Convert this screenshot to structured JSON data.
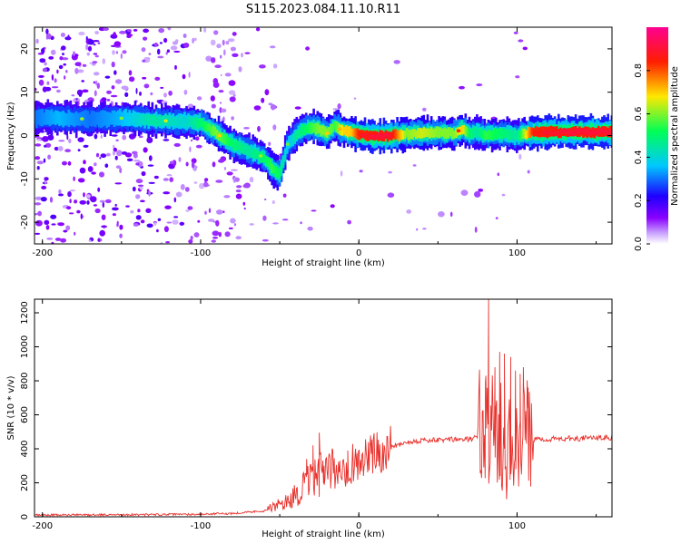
{
  "title": "S115.2023.084.11.10.R11",
  "colors": {
    "trace": "#e8312c",
    "frame": "#000000",
    "colorbar": [
      "#ffffff",
      "#8a00ff",
      "#1e00ff",
      "#00c8ff",
      "#00ff55",
      "#ffe800",
      "#ff1e00",
      "#ff0090"
    ]
  },
  "chart_data": [
    {
      "type": "heatmap",
      "title": "S115.2023.084.11.10.R11",
      "xlabel": "Height of straight line (km)",
      "ylabel": "Frequency (Hz)",
      "xlim": [
        -205,
        160
      ],
      "ylim": [
        -25,
        25
      ],
      "x_ticks": [
        -200,
        -100,
        0,
        100
      ],
      "y_ticks": [
        -20,
        -10,
        0,
        10,
        20
      ],
      "colorbar": {
        "label": "Normalized spectral amplitude",
        "range": [
          0,
          1
        ],
        "ticks": [
          "0.0",
          "0.2",
          "0.4",
          "0.6",
          "0.8"
        ],
        "colormap": "white-purple-blue-cyan-green-yellow-red-magenta"
      },
      "ridge": {
        "x": [
          -205,
          -190,
          -170,
          -150,
          -130,
          -110,
          -100,
          -90,
          -80,
          -70,
          -60,
          -55,
          -50,
          -45,
          -40,
          -35,
          -30,
          -25,
          -20,
          -15,
          -10,
          -5,
          0,
          10,
          20,
          30,
          40,
          50,
          60,
          65,
          70,
          75,
          80,
          90,
          100,
          110,
          130,
          160
        ],
        "y": [
          4,
          4,
          3.8,
          4,
          3.5,
          3.2,
          3,
          0.5,
          -2,
          -3.5,
          -5,
          -7.5,
          -9,
          -2,
          0,
          1.5,
          2,
          1.5,
          0.5,
          2.2,
          1,
          0.8,
          0.3,
          -0.2,
          0,
          0.4,
          0.4,
          0.6,
          0.5,
          1.5,
          0.5,
          0.8,
          0.2,
          0.4,
          0,
          0.7,
          0.8,
          0.8
        ],
        "peak_amplitude": [
          0.3,
          0.35,
          0.3,
          0.35,
          0.45,
          0.4,
          0.5,
          0.6,
          0.5,
          0.45,
          0.5,
          0.55,
          0.5,
          0.35,
          0.45,
          0.5,
          0.55,
          0.6,
          0.6,
          0.55,
          0.7,
          0.7,
          0.85,
          0.9,
          0.9,
          0.6,
          0.65,
          0.6,
          0.6,
          0.7,
          0.5,
          0.45,
          0.55,
          0.5,
          0.45,
          0.85,
          0.9,
          0.9
        ]
      }
    },
    {
      "type": "line",
      "xlabel": "Height of straight line (km)",
      "ylabel": "SNR (10 * v/v)",
      "xlim": [
        -205,
        160
      ],
      "ylim": [
        0,
        1280
      ],
      "x_ticks": [
        -200,
        -100,
        0,
        100
      ],
      "y_ticks": [
        0,
        200,
        400,
        600,
        800,
        1000,
        1200
      ],
      "series": [
        {
          "envelope_x": [
            -205,
            -150,
            -100,
            -80,
            -60,
            -45,
            -35,
            -28,
            -20,
            -10,
            0,
            10,
            20,
            30,
            40,
            50,
            60,
            70,
            75,
            80,
            85,
            90,
            100,
            108,
            110,
            130,
            160
          ],
          "envelope_y": [
            10,
            12,
            15,
            20,
            35,
            90,
            170,
            230,
            260,
            300,
            330,
            370,
            410,
            440,
            450,
            450,
            455,
            455,
            470,
            520,
            500,
            480,
            470,
            460,
            455,
            460,
            465
          ],
          "spikes": [
            {
              "x": -33,
              "y": 340
            },
            {
              "x": -29,
              "y": 420
            },
            {
              "x": -25,
              "y": 495
            },
            {
              "x": -22,
              "y": 300
            },
            {
              "x": -12,
              "y": 330
            },
            {
              "x": -7,
              "y": 390
            },
            {
              "x": 7,
              "y": 420
            },
            {
              "x": 80,
              "y": 790
            },
            {
              "x": 82,
              "y": 1280
            },
            {
              "x": 86,
              "y": 880
            },
            {
              "x": 89,
              "y": 970
            },
            {
              "x": 92,
              "y": 960
            },
            {
              "x": 96,
              "y": 940
            },
            {
              "x": 99,
              "y": 860
            },
            {
              "x": 102,
              "y": 840
            },
            {
              "x": 104,
              "y": 880
            },
            {
              "x": 107,
              "y": 760
            }
          ],
          "noisy_ranges": [
            [
              -60,
              20
            ],
            [
              75,
              110
            ]
          ]
        }
      ]
    }
  ]
}
